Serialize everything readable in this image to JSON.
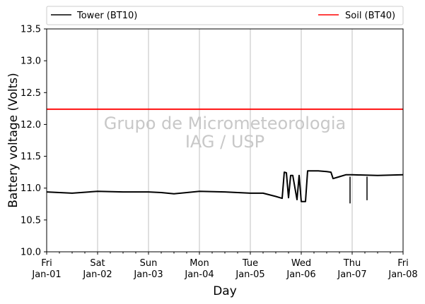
{
  "chart_data": {
    "type": "line",
    "xlabel": "Day",
    "ylabel": "Battery voltage (Volts)",
    "ylim": [
      10.0,
      13.5
    ],
    "xlim": [
      "Jan-01",
      "Jan-08"
    ],
    "grid": "vertical",
    "legend_position": "top, outside plot",
    "x_ticks": [
      {
        "day": "Fri",
        "date": "Jan-01"
      },
      {
        "day": "Sat",
        "date": "Jan-02"
      },
      {
        "day": "Sun",
        "date": "Jan-03"
      },
      {
        "day": "Mon",
        "date": "Jan-04"
      },
      {
        "day": "Tue",
        "date": "Jan-05"
      },
      {
        "day": "Wed",
        "date": "Jan-06"
      },
      {
        "day": "Thu",
        "date": "Jan-07"
      },
      {
        "day": "Fri",
        "date": "Jan-08"
      }
    ],
    "y_ticks": [
      "10.0",
      "10.5",
      "11.0",
      "11.5",
      "12.0",
      "12.5",
      "13.0",
      "13.5"
    ],
    "watermark": [
      "Grupo de Micrometeorologia",
      "IAG / USP"
    ],
    "series": [
      {
        "name": "Tower (BT10)",
        "color": "#000000",
        "points": [
          [
            "Jan-01",
            10.94
          ],
          [
            "Jan-01 12:00",
            10.92
          ],
          [
            "Jan-02",
            10.95
          ],
          [
            "Jan-02 12:00",
            10.94
          ],
          [
            "Jan-03",
            10.94
          ],
          [
            "Jan-03 06:00",
            10.93
          ],
          [
            "Jan-03 12:00",
            10.91
          ],
          [
            "Jan-04",
            10.95
          ],
          [
            "Jan-04 12:00",
            10.94
          ],
          [
            "Jan-05",
            10.92
          ],
          [
            "Jan-05 06:00",
            10.92
          ],
          [
            "Jan-05 12:00",
            10.87
          ],
          [
            "Jan-05 15:00",
            10.84
          ],
          [
            "Jan-05 16:00",
            11.25
          ],
          [
            "Jan-05 17:00",
            11.24
          ],
          [
            "Jan-05 18:00",
            10.85
          ],
          [
            "Jan-05 19:00",
            11.2
          ],
          [
            "Jan-05 20:00",
            11.2
          ],
          [
            "Jan-05 22:00",
            10.82
          ],
          [
            "Jan-05 23:00",
            11.2
          ],
          [
            "Jan-06",
            10.79
          ],
          [
            "Jan-06 02:00",
            10.79
          ],
          [
            "Jan-06 03:00",
            11.27
          ],
          [
            "Jan-06 08:00",
            11.27
          ],
          [
            "Jan-06 12:00",
            11.26
          ],
          [
            "Jan-06 14:00",
            11.25
          ],
          [
            "Jan-06 15:00",
            11.15
          ],
          [
            "Jan-06 18:00",
            11.18
          ],
          [
            "Jan-06 21:00",
            11.21
          ],
          [
            "Jan-07",
            11.21
          ],
          [
            "Jan-07 12:00",
            11.2
          ],
          [
            "Jan-08",
            11.21
          ]
        ],
        "dips": [
          [
            "Jan-06 23:00",
            10.76
          ],
          [
            "Jan-07 07:00",
            10.81
          ]
        ]
      },
      {
        "name": "Soil (BT40)",
        "color": "#ff0000",
        "points": [
          [
            "Jan-01",
            12.24
          ],
          [
            "Jan-08",
            12.24
          ]
        ]
      }
    ]
  }
}
